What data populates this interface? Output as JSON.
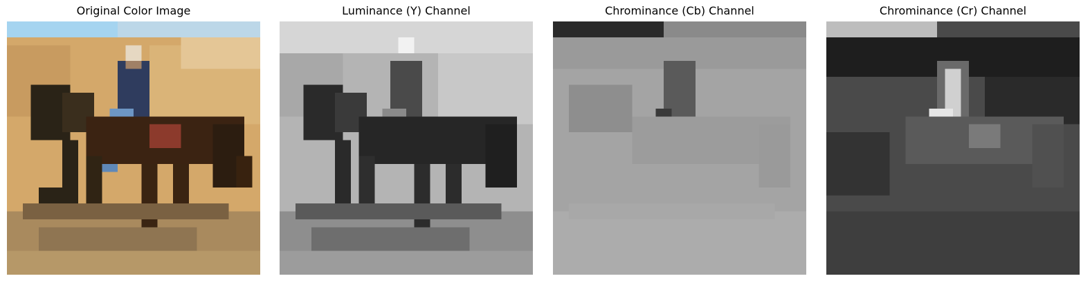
{
  "panels": [
    {
      "title": "Original Color Image",
      "kind": "color"
    },
    {
      "title": "Luminance (Y) Channel",
      "kind": "luminance"
    },
    {
      "title": "Chrominance (Cb) Channel",
      "kind": "cb"
    },
    {
      "title": "Chrominance (Cr) Channel",
      "kind": "cr"
    }
  ]
}
